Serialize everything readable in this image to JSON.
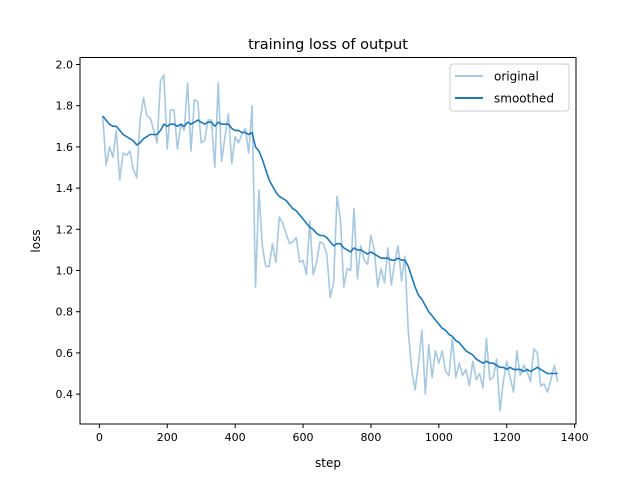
{
  "chart_data": {
    "type": "line",
    "title": "training loss of output",
    "xlabel": "step",
    "ylabel": "loss",
    "xlim": [
      -57,
      1404
    ],
    "ylim": [
      0.255,
      2.034
    ],
    "xticks": [
      0,
      200,
      400,
      600,
      800,
      1000,
      1200,
      1400
    ],
    "yticks": [
      0.4,
      0.6,
      0.8,
      1.0,
      1.2,
      1.4,
      1.6,
      1.8,
      2.0
    ],
    "ytick_labels": [
      "0.4",
      "0.6",
      "0.8",
      "1.0",
      "1.2",
      "1.4",
      "1.6",
      "1.8",
      "2.0"
    ],
    "grid": false,
    "legend_position": "top-right",
    "x": [
      10,
      20,
      30,
      40,
      50,
      60,
      70,
      80,
      90,
      100,
      110,
      120,
      130,
      140,
      150,
      160,
      170,
      180,
      190,
      200,
      210,
      220,
      230,
      240,
      250,
      260,
      270,
      280,
      290,
      300,
      310,
      320,
      330,
      340,
      350,
      360,
      370,
      380,
      390,
      400,
      410,
      420,
      430,
      440,
      450,
      460,
      470,
      480,
      490,
      500,
      510,
      520,
      530,
      540,
      550,
      560,
      570,
      580,
      590,
      600,
      610,
      620,
      630,
      640,
      650,
      660,
      670,
      680,
      690,
      700,
      710,
      720,
      730,
      740,
      750,
      760,
      770,
      780,
      790,
      800,
      810,
      820,
      830,
      840,
      850,
      860,
      870,
      880,
      890,
      900,
      910,
      920,
      930,
      940,
      950,
      960,
      970,
      980,
      990,
      1000,
      1010,
      1020,
      1030,
      1040,
      1050,
      1060,
      1070,
      1080,
      1090,
      1100,
      1110,
      1120,
      1130,
      1140,
      1150,
      1160,
      1170,
      1180,
      1190,
      1200,
      1210,
      1220,
      1230,
      1240,
      1250,
      1260,
      1270,
      1280,
      1290,
      1300,
      1310,
      1320,
      1330,
      1340,
      1350
    ],
    "series": [
      {
        "name": "original",
        "color": "#a6c8e0",
        "values": [
          1.75,
          1.51,
          1.6,
          1.55,
          1.68,
          1.44,
          1.57,
          1.56,
          1.58,
          1.49,
          1.45,
          1.73,
          1.84,
          1.75,
          1.74,
          1.68,
          1.62,
          1.92,
          1.95,
          1.59,
          1.78,
          1.78,
          1.59,
          1.71,
          1.68,
          1.91,
          1.58,
          1.83,
          1.82,
          1.62,
          1.63,
          1.73,
          1.73,
          1.5,
          1.91,
          1.53,
          1.65,
          1.76,
          1.52,
          1.65,
          1.62,
          1.66,
          1.69,
          1.57,
          1.8,
          0.92,
          1.39,
          1.12,
          1.02,
          1.02,
          1.13,
          1.04,
          1.26,
          1.23,
          1.18,
          1.13,
          1.14,
          1.16,
          1.04,
          1.05,
          0.98,
          1.24,
          0.98,
          1.04,
          1.14,
          1.13,
          1.08,
          0.87,
          0.94,
          1.36,
          1.25,
          0.92,
          1.01,
          1.0,
          1.3,
          0.96,
          1.12,
          1.05,
          1.03,
          1.17,
          1.1,
          0.92,
          1.01,
          0.94,
          1.11,
          0.93,
          1.04,
          1.12,
          0.95,
          1.07,
          0.7,
          0.52,
          0.42,
          0.55,
          0.71,
          0.4,
          0.64,
          0.48,
          0.61,
          0.55,
          0.61,
          0.51,
          0.49,
          0.67,
          0.48,
          0.55,
          0.49,
          0.52,
          0.44,
          0.56,
          0.47,
          0.5,
          0.43,
          0.67,
          0.47,
          0.48,
          0.57,
          0.32,
          0.46,
          0.56,
          0.48,
          0.41,
          0.61,
          0.49,
          0.54,
          0.51,
          0.46,
          0.62,
          0.6,
          0.44,
          0.45,
          0.41,
          0.47,
          0.54,
          0.46
        ]
      },
      {
        "name": "smoothed",
        "color": "#1f77b4",
        "values": [
          1.75,
          1.73,
          1.71,
          1.7,
          1.7,
          1.68,
          1.66,
          1.65,
          1.64,
          1.63,
          1.61,
          1.62,
          1.64,
          1.65,
          1.66,
          1.66,
          1.66,
          1.68,
          1.71,
          1.7,
          1.71,
          1.71,
          1.7,
          1.71,
          1.7,
          1.72,
          1.71,
          1.72,
          1.73,
          1.72,
          1.71,
          1.72,
          1.72,
          1.7,
          1.72,
          1.71,
          1.71,
          1.71,
          1.69,
          1.68,
          1.68,
          1.67,
          1.67,
          1.66,
          1.67,
          1.6,
          1.58,
          1.54,
          1.49,
          1.44,
          1.41,
          1.38,
          1.36,
          1.35,
          1.34,
          1.32,
          1.3,
          1.29,
          1.27,
          1.25,
          1.23,
          1.21,
          1.2,
          1.18,
          1.17,
          1.17,
          1.16,
          1.14,
          1.12,
          1.13,
          1.13,
          1.11,
          1.1,
          1.09,
          1.11,
          1.1,
          1.1,
          1.09,
          1.08,
          1.09,
          1.08,
          1.07,
          1.06,
          1.06,
          1.06,
          1.05,
          1.05,
          1.06,
          1.05,
          1.05,
          1.02,
          0.97,
          0.92,
          0.88,
          0.86,
          0.83,
          0.8,
          0.78,
          0.76,
          0.74,
          0.72,
          0.71,
          0.69,
          0.68,
          0.66,
          0.65,
          0.63,
          0.61,
          0.6,
          0.59,
          0.57,
          0.56,
          0.55,
          0.56,
          0.55,
          0.55,
          0.54,
          0.53,
          0.53,
          0.52,
          0.53,
          0.52,
          0.52,
          0.52,
          0.51,
          0.52,
          0.51,
          0.52,
          0.53,
          0.52,
          0.51,
          0.5,
          0.5,
          0.5,
          0.5
        ]
      }
    ]
  }
}
